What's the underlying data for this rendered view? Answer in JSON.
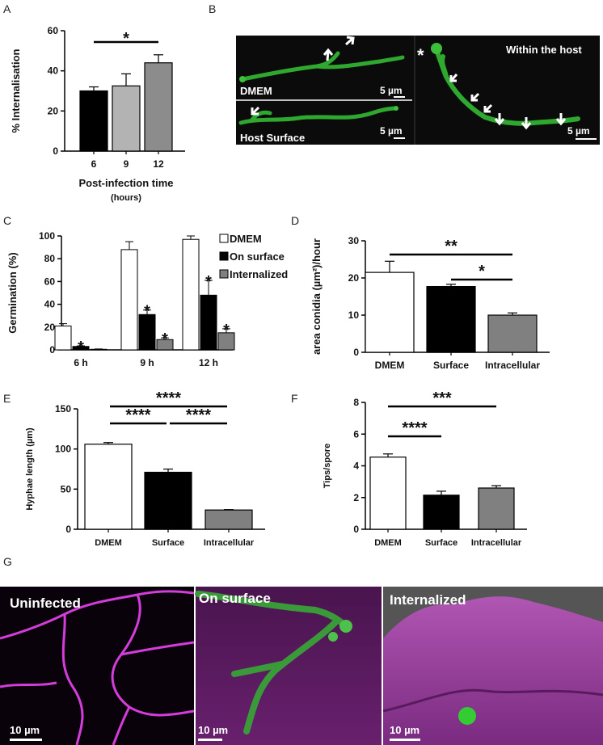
{
  "panels": {
    "A": "A",
    "B": "B",
    "C": "C",
    "D": "D",
    "E": "E",
    "F": "F",
    "G": "G"
  },
  "chart_data": [
    {
      "id": "A",
      "type": "bar",
      "categories": [
        "6",
        "9",
        "12"
      ],
      "values": [
        30,
        32.5,
        44
      ],
      "errors": [
        2,
        6,
        4
      ],
      "colors": [
        "#000000",
        "#b3b3b3",
        "#8c8c8c"
      ],
      "ylabel": "% Internalisation",
      "xlabel": "Post-infection time",
      "xlabel2": "(hours)",
      "ylim": [
        0,
        60
      ],
      "yticks": [
        "0",
        "20",
        "40",
        "60"
      ],
      "sig": [
        {
          "from": 0,
          "to": 2,
          "label": "*"
        }
      ]
    },
    {
      "id": "C",
      "type": "bar",
      "categories": [
        "6 h",
        "9 h",
        "12 h"
      ],
      "series": [
        {
          "name": "DMEM",
          "values": [
            21,
            88,
            97
          ],
          "errors": [
            2,
            7,
            3
          ],
          "color": "#ffffff"
        },
        {
          "name": "On surface",
          "values": [
            3,
            31,
            48
          ],
          "errors": [
            0.5,
            4,
            13
          ],
          "color": "#000000"
        },
        {
          "name": "Internalized",
          "values": [
            0.5,
            9,
            15
          ],
          "errors": [
            0.3,
            1.5,
            3.5
          ],
          "color": "#808080"
        }
      ],
      "stars": [
        {
          "group": 0,
          "series": 1,
          "label": "*"
        },
        {
          "group": 1,
          "series": 1,
          "label": "*"
        },
        {
          "group": 1,
          "series": 2,
          "label": "*"
        },
        {
          "group": 2,
          "series": 1,
          "label": "*"
        },
        {
          "group": 2,
          "series": 2,
          "label": "*"
        }
      ],
      "ylabel": "Germination (%)",
      "ylim": [
        0,
        100
      ],
      "yticks": [
        "0",
        "20",
        "40",
        "60",
        "80",
        "100"
      ],
      "legend_position": "top-right"
    },
    {
      "id": "D",
      "type": "bar",
      "categories": [
        "DMEM",
        "Surface",
        "Intracellular"
      ],
      "values": [
        21.5,
        17.7,
        10
      ],
      "errors": [
        3,
        0.6,
        0.6
      ],
      "colors": [
        "#ffffff",
        "#000000",
        "#808080"
      ],
      "ylabel": "area conidia (µm²)/hour",
      "ylim": [
        0,
        30
      ],
      "yticks": [
        "0",
        "10",
        "20",
        "30"
      ],
      "sig": [
        {
          "from": 0,
          "to": 2,
          "label": "**"
        },
        {
          "from": 1,
          "to": 2,
          "label": "*"
        }
      ]
    },
    {
      "id": "E",
      "type": "bar",
      "categories": [
        "DMEM",
        "Surface",
        "Intracellular"
      ],
      "values": [
        106,
        71,
        24
      ],
      "errors": [
        2,
        4,
        0.5
      ],
      "colors": [
        "#ffffff",
        "#000000",
        "#808080"
      ],
      "ylabel": "Hyphae length (µm)",
      "ylim": [
        0,
        150
      ],
      "yticks": [
        "0",
        "50",
        "100",
        "150"
      ],
      "sig": [
        {
          "from": 0,
          "to": 2,
          "label": "****"
        },
        {
          "from": 0,
          "to": 1,
          "label": "****"
        },
        {
          "from": 1,
          "to": 2,
          "label": "****"
        }
      ]
    },
    {
      "id": "F",
      "type": "bar",
      "categories": [
        "DMEM",
        "Surface",
        "Intracellular"
      ],
      "values": [
        4.55,
        2.15,
        2.6
      ],
      "errors": [
        0.2,
        0.25,
        0.15
      ],
      "colors": [
        "#ffffff",
        "#000000",
        "#808080"
      ],
      "ylabel": "Tips/spore",
      "ylim": [
        0,
        8
      ],
      "yticks": [
        "0",
        "2",
        "4",
        "6",
        "8"
      ],
      "sig": [
        {
          "from": 0,
          "to": 2,
          "label": "***"
        },
        {
          "from": 0,
          "to": 1,
          "label": "****"
        }
      ]
    }
  ],
  "micrographs": {
    "B": {
      "dmem": "DMEM",
      "host_surface": "Host Surface",
      "within_host": "Within the host",
      "scale": "5 µm"
    },
    "G": {
      "uninfected": "Uninfected",
      "on_surface": "On surface",
      "internalized": "Internalized",
      "scale": "10 µm"
    }
  }
}
